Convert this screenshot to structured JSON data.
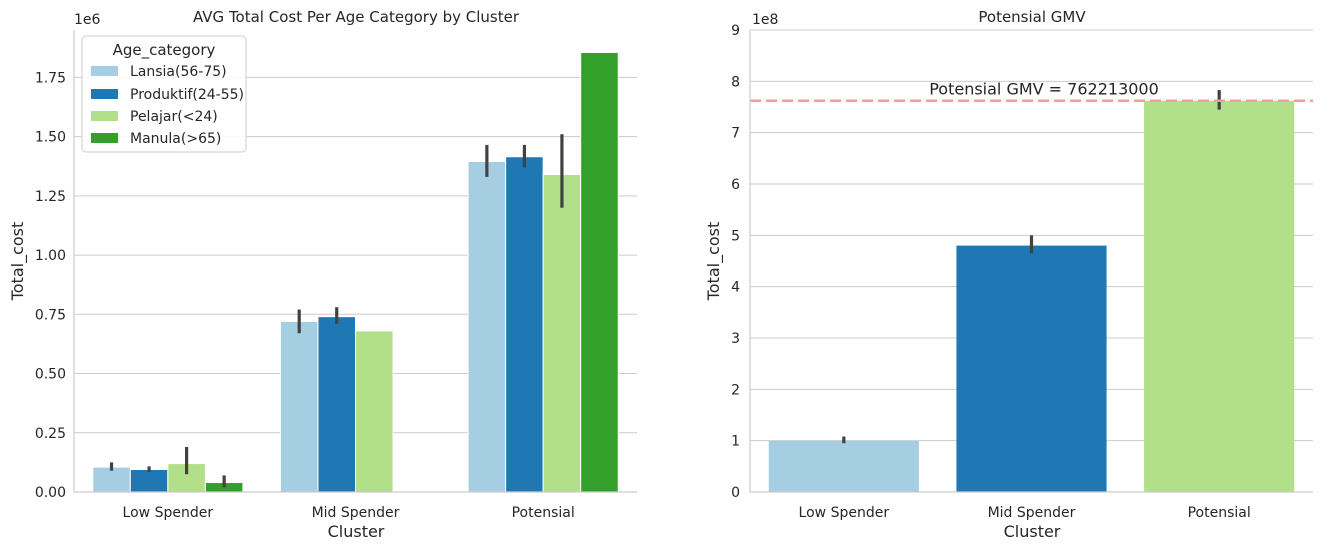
{
  "colors": {
    "lansia": "#a6cee3",
    "produktif": "#1f78b4",
    "pelajar": "#b2df8a",
    "manula": "#33a02c",
    "hline": "#fb9a99",
    "errbar": "#424242",
    "grid": "#cccccc"
  },
  "chart_data": [
    {
      "type": "bar",
      "title": "AVG Total Cost Per Age Category by Cluster",
      "xlabel": "Cluster",
      "ylabel": "Total_cost",
      "offset_label": "1e6",
      "categories": [
        "Low Spender",
        "Mid Spender",
        "Potensial"
      ],
      "ylim": [
        0,
        1.95
      ],
      "yticks": [
        "0.00",
        "0.25",
        "0.50",
        "0.75",
        "1.00",
        "1.25",
        "1.50",
        "1.75"
      ],
      "grid": true,
      "legend": {
        "title": "Age_category",
        "placement": "top-left"
      },
      "series": [
        {
          "name": "Lansia(56-75)",
          "color_key": "lansia",
          "values": [
            0.105,
            0.72,
            1.395
          ],
          "err": [
            [
              0.09,
              0.125
            ],
            [
              0.67,
              0.77
            ],
            [
              1.33,
              1.465
            ]
          ]
        },
        {
          "name": "Produktif(24-55)",
          "color_key": "produktif",
          "values": [
            0.095,
            0.74,
            1.415
          ],
          "err": [
            [
              0.085,
              0.108
            ],
            [
              0.71,
              0.78
            ],
            [
              1.37,
              1.465
            ]
          ]
        },
        {
          "name": "Pelajar(<24)",
          "color_key": "pelajar",
          "values": [
            0.12,
            0.68,
            1.34
          ],
          "err": [
            [
              0.075,
              0.19
            ],
            null,
            [
              1.2,
              1.51
            ]
          ]
        },
        {
          "name": "Manula(>65)",
          "color_key": "manula",
          "values": [
            0.04,
            null,
            1.855
          ],
          "err": [
            [
              0.02,
              0.07
            ],
            null,
            null
          ]
        }
      ]
    },
    {
      "type": "bar",
      "title": "Potensial GMV",
      "xlabel": "Cluster",
      "ylabel": "Total_cost",
      "offset_label": "1e8",
      "categories": [
        "Low Spender",
        "Mid Spender",
        "Potensial"
      ],
      "ylim": [
        0,
        9
      ],
      "yticks": [
        "0",
        "1",
        "2",
        "3",
        "4",
        "5",
        "6",
        "7",
        "8",
        "9"
      ],
      "grid": true,
      "series": [
        {
          "values": [
            1.0,
            4.8,
            7.62
          ],
          "colors": [
            "lansia",
            "produktif",
            "pelajar"
          ],
          "err": [
            [
              0.95,
              1.08
            ],
            [
              4.65,
              5.0
            ],
            [
              7.45,
              7.83
            ]
          ]
        }
      ],
      "hline": {
        "value": 7.62213,
        "label": "Potensial GMV = 762213000"
      }
    }
  ]
}
